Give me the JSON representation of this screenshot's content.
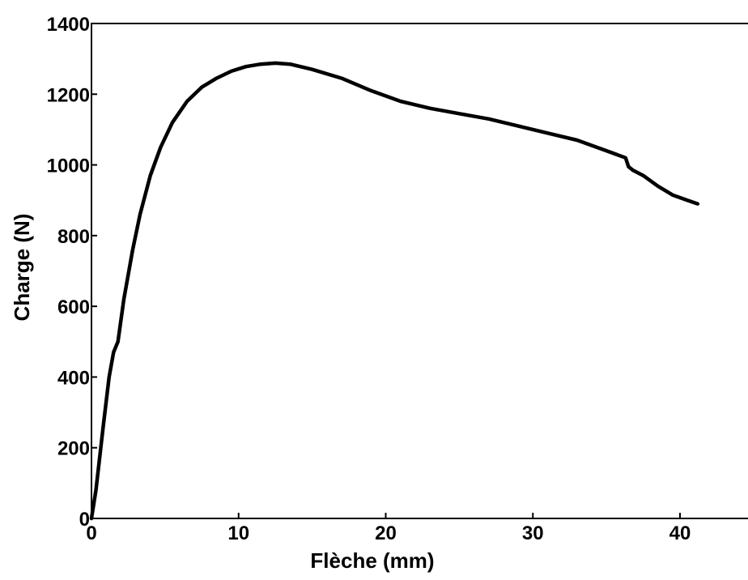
{
  "chart_data": {
    "type": "line",
    "title": "",
    "xlabel": "Flèche (mm)",
    "ylabel": "Charge (N)",
    "xlim": [
      0,
      45
    ],
    "ylim": [
      0,
      1400
    ],
    "xticks": [
      0,
      10,
      20,
      30,
      40
    ],
    "yticks": [
      0,
      200,
      400,
      600,
      800,
      1000,
      1200,
      1400
    ],
    "grid": false,
    "legend": "none",
    "line_color": "#000000",
    "series": [
      {
        "x": [
          0,
          0.3,
          0.8,
          1.2,
          1.5,
          1.8,
          2.2,
          2.8,
          3.3,
          4.0,
          4.7,
          5.5,
          6.5,
          7.5,
          8.5,
          9.5,
          10.5,
          11.5,
          12.5,
          13.5,
          15.0,
          17.0,
          19.0,
          21.0,
          23.0,
          25.0,
          27.0,
          29.0,
          31.0,
          33.0,
          35.0,
          36.3,
          36.5,
          36.8,
          37.5,
          38.5,
          39.5,
          40.5,
          41.2
        ],
        "y": [
          0,
          80,
          260,
          400,
          470,
          500,
          620,
          760,
          860,
          970,
          1050,
          1120,
          1180,
          1220,
          1245,
          1265,
          1278,
          1285,
          1288,
          1285,
          1270,
          1245,
          1210,
          1180,
          1160,
          1145,
          1130,
          1110,
          1090,
          1070,
          1040,
          1020,
          995,
          985,
          970,
          940,
          915,
          900,
          890
        ]
      }
    ]
  }
}
